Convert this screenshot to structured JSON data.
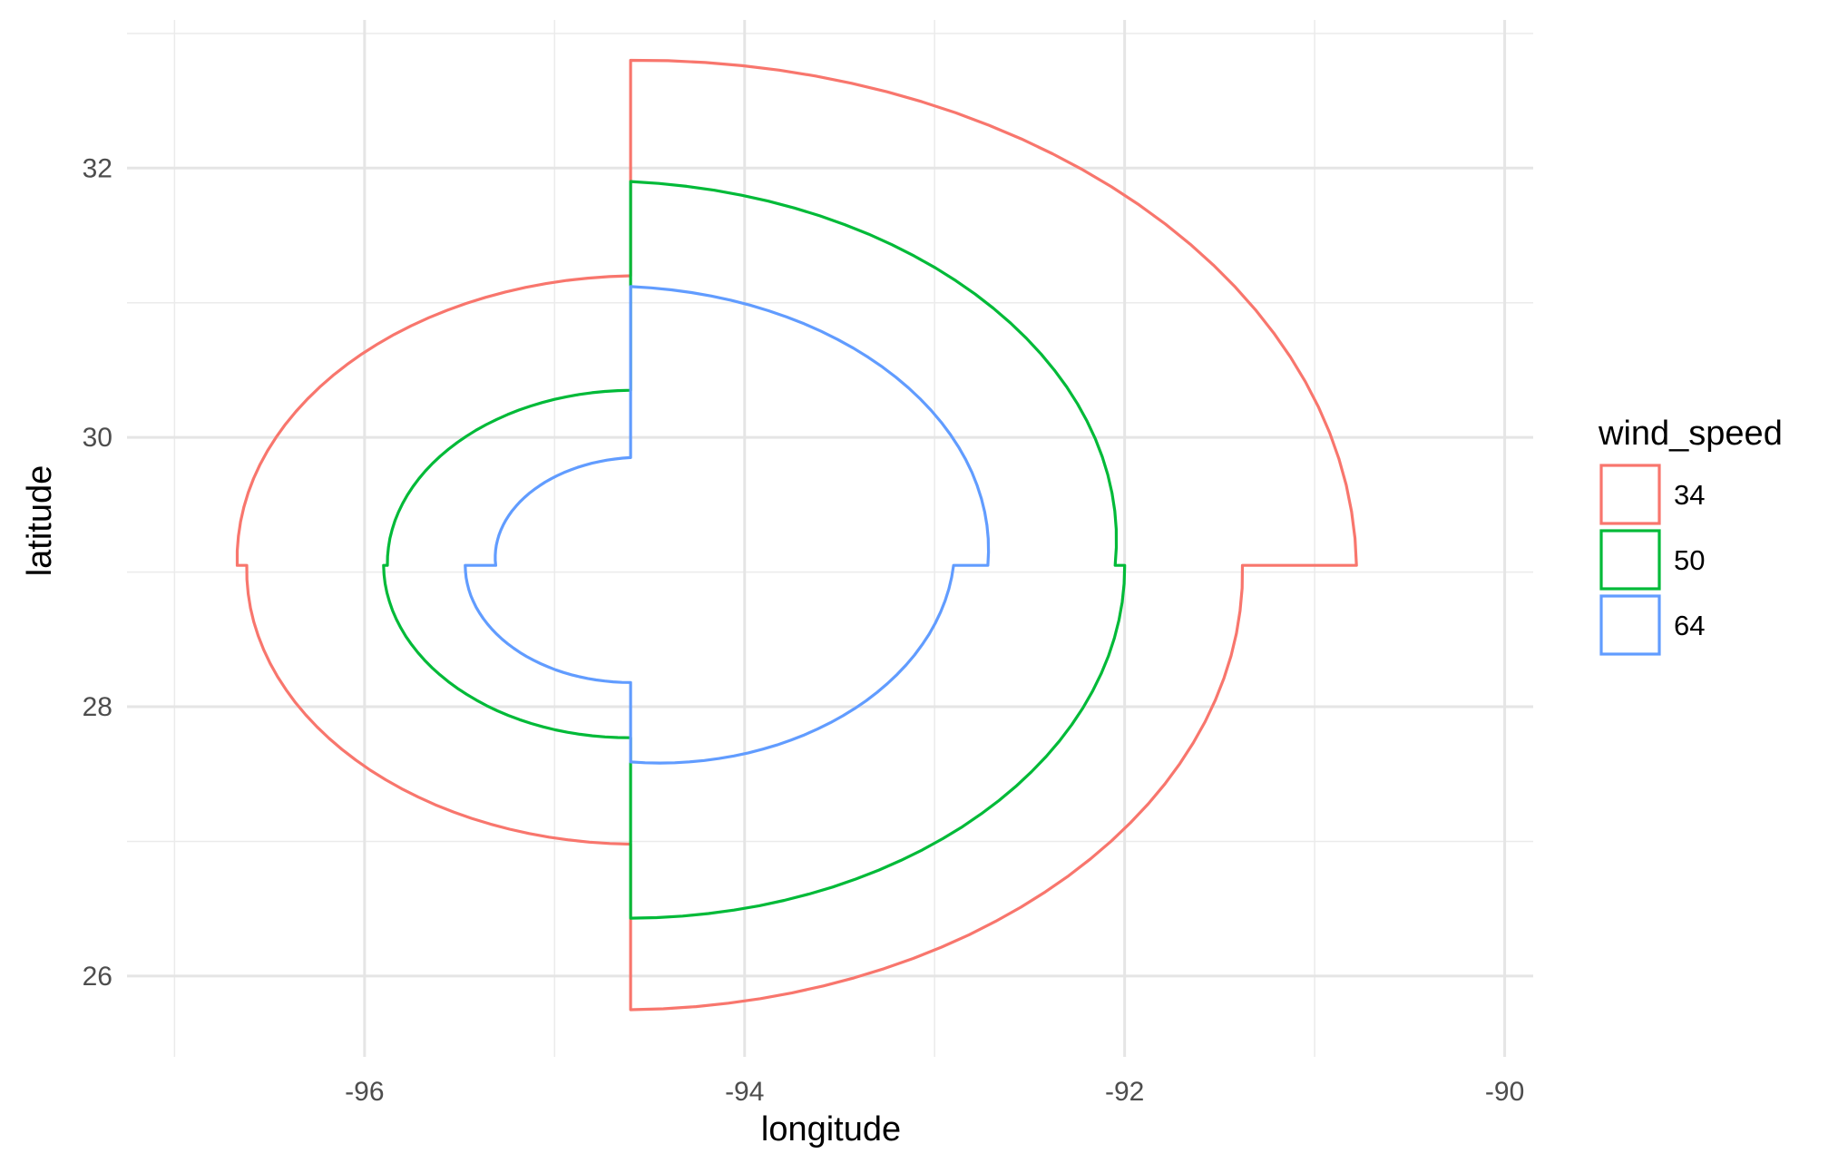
{
  "chart_data": {
    "type": "line",
    "title": "",
    "xlabel": "longitude",
    "ylabel": "latitude",
    "xlim": [
      -97.25,
      -89.85
    ],
    "ylim": [
      25.4,
      33.1
    ],
    "x_ticks": [
      -96,
      -94,
      -92,
      -90
    ],
    "x_tick_labels": [
      "-96",
      "-94",
      "-92",
      "-90"
    ],
    "y_ticks": [
      26,
      28,
      30,
      32
    ],
    "y_tick_labels": [
      "26",
      "28",
      "30",
      "32"
    ],
    "x_minor_ticks": [
      -97,
      -95,
      -93,
      -91
    ],
    "y_minor_ticks": [
      27,
      29,
      31,
      33
    ],
    "grid": true,
    "legend": {
      "title": "wind_speed",
      "position": "right"
    },
    "center": [
      -94.6,
      29.05
    ],
    "series": [
      {
        "name": "34",
        "color": "#f8766d",
        "radii_deg": {
          "NE": [
            3.75,
            3.82
          ],
          "SE": [
            3.22,
            3.3
          ],
          "SW": [
            2.07,
            2.02
          ],
          "NW": [
            2.07,
            2.15
          ]
        }
      },
      {
        "name": "50",
        "color": "#00ba38",
        "radii_deg": {
          "NE": [
            2.85,
            2.55
          ],
          "SE": [
            2.6,
            2.62
          ],
          "SW": [
            1.28,
            1.3
          ],
          "NW": [
            1.28,
            1.3
          ]
        }
      },
      {
        "name": "64",
        "color": "#619cff",
        "radii_deg": {
          "NE": [
            2.07,
            1.88
          ],
          "SE": [
            1.7,
            1.46
          ],
          "SW": [
            0.87,
            0.87
          ],
          "NW": [
            0.71,
            0.8
          ]
        }
      }
    ]
  }
}
